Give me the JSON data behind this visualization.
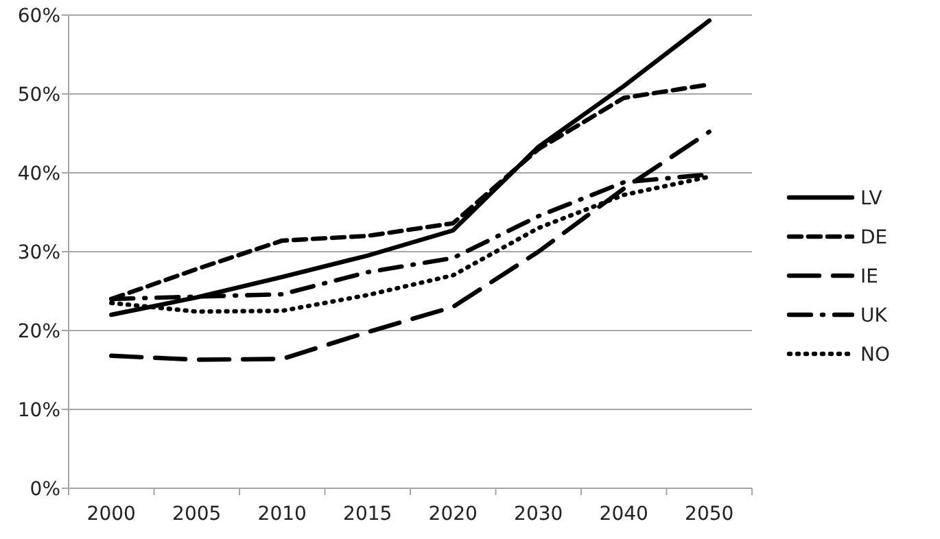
{
  "chart_data": {
    "type": "line",
    "categories": [
      "2000",
      "2005",
      "2010",
      "2015",
      "2020",
      "2030",
      "2040",
      "2050"
    ],
    "ylim": [
      0,
      60
    ],
    "yticks": [
      {
        "value": 0,
        "label": "0%"
      },
      {
        "value": 10,
        "label": "10%"
      },
      {
        "value": 20,
        "label": "20%"
      },
      {
        "value": 30,
        "label": "30%"
      },
      {
        "value": 40,
        "label": "40%"
      },
      {
        "value": 50,
        "label": "50%"
      },
      {
        "value": 60,
        "label": "60%"
      }
    ],
    "grid": "y",
    "legend": "right",
    "marker": "none",
    "series": [
      {
        "name": "LV",
        "color": "#000000",
        "line_style": "solid",
        "values": [
          22,
          24.2,
          26.8,
          29.5,
          32.7,
          43.3,
          51,
          59.3
        ]
      },
      {
        "name": "DE",
        "color": "#000000",
        "line_style": "dashed",
        "values": [
          24,
          27.8,
          31.4,
          32,
          33.6,
          43,
          49.5,
          51.2
        ]
      },
      {
        "name": "IE",
        "color": "#000000",
        "line_style": "longdash",
        "values": [
          16.8,
          16.3,
          16.4,
          19.8,
          23,
          30,
          38,
          45.2
        ]
      },
      {
        "name": "UK",
        "color": "#000000",
        "line_style": "dashdot",
        "values": [
          24,
          24.3,
          24.6,
          27.4,
          29.2,
          34.5,
          38.8,
          39.8
        ]
      },
      {
        "name": "NO",
        "color": "#000000",
        "line_style": "dotted",
        "values": [
          23.5,
          22.4,
          22.5,
          24.5,
          27,
          33,
          37.2,
          39.5
        ]
      }
    ]
  }
}
